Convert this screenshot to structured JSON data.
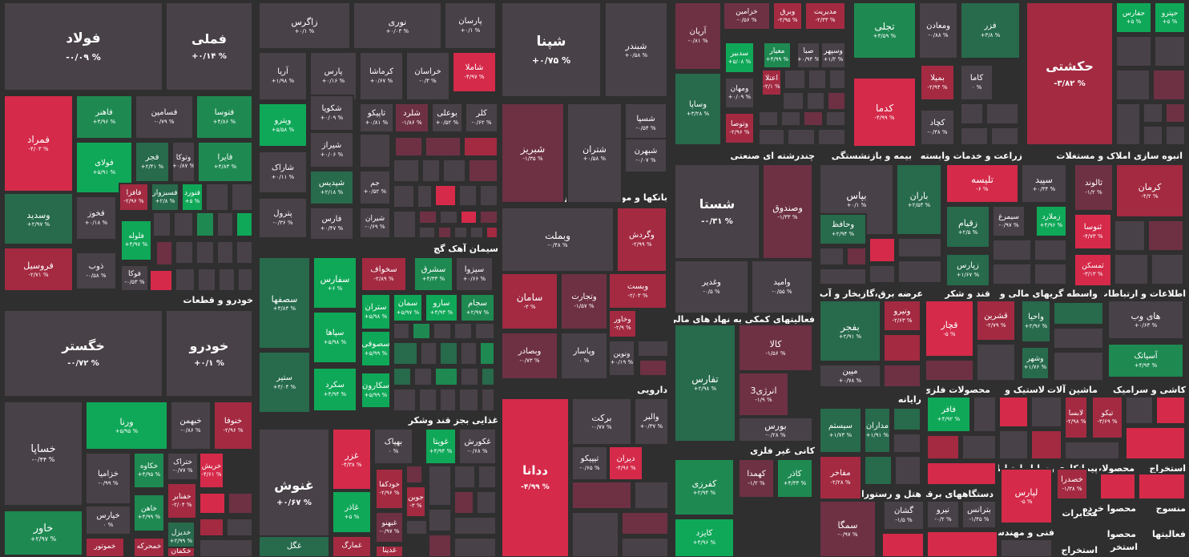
{
  "chart_data": {
    "type": "treemap",
    "colors": {
      "dn3": "#d52a4a",
      "dn2": "#a32a41",
      "dn1": "#6e3144",
      "flat": "#494148",
      "up1": "#276a4c",
      "up2": "#1e8a52",
      "up3": "#0fa858"
    },
    "sectors": [
      {
        "name": "خودرو و قطعات"
      },
      {
        "name": "سیمان آهک گچ"
      },
      {
        "name": "بانکها و موسسات اعتباری"
      },
      {
        "name": "چندرشته ای صنعتی"
      },
      {
        "name": "بیمه و بازنشستگی"
      },
      {
        "name": "زراعت و خدمات وابسته"
      },
      {
        "name": "انبوه سازی املاک و مستغلات"
      },
      {
        "name": "غذایی بجز قند وشکر"
      },
      {
        "name": "دارویی"
      },
      {
        "name": "فعالیتهای کمکی به نهاد های مالی واسط"
      },
      {
        "name": "عرضه برق،گازبخار و آب گرم"
      },
      {
        "name": "قند و شکر"
      },
      {
        "name": "واسطه گریهای مالی و"
      },
      {
        "name": "اطلاعات و ارتباطات"
      },
      {
        "name": "کانی غیر فلزی"
      },
      {
        "name": "رایانه"
      },
      {
        "name": "محصولات فلزی"
      },
      {
        "name": "لاستیک و"
      },
      {
        "name": "ماشین آلات و"
      },
      {
        "name": "کاشی و سرامیک"
      },
      {
        "name": "وسایل ارتباطی"
      },
      {
        "name": "پیمانکاری"
      },
      {
        "name": "محصولات"
      },
      {
        "name": "استخراج"
      },
      {
        "name": "هتل و رستوران"
      },
      {
        "name": "دستگاههای برقی"
      },
      {
        "name": "مخابرات"
      },
      {
        "name": "منسوج"
      },
      {
        "name": "محصوا"
      },
      {
        "name": "خرده"
      },
      {
        "name": "فنی و مهندسی"
      },
      {
        "name": "فعالیتها"
      },
      {
        "name": "محصوا"
      },
      {
        "name": "استخراج"
      },
      {
        "name": "استخر"
      }
    ],
    "tiles": [
      {
        "name": "فولاد",
        "value": "-۰/۰۹ %",
        "c": "flat"
      },
      {
        "name": "فملی",
        "value": "+۰/۱۴ %",
        "c": "flat"
      },
      {
        "name": "زاگرس",
        "value": "+۰/۱ %",
        "c": "flat"
      },
      {
        "name": "نوری",
        "value": "+۰/۰۳ %",
        "c": "flat"
      },
      {
        "name": "پارسان",
        "value": "+۰/۱ %",
        "c": "flat"
      },
      {
        "name": "شپنا",
        "value": "+۰/۷۵ %",
        "c": "flat"
      },
      {
        "name": "شبندر",
        "value": "+۰/۵۸ %",
        "c": "flat"
      },
      {
        "name": "آریان",
        "value": "-۰/۸۱ %",
        "c": "dn1"
      },
      {
        "name": "خزامین",
        "value": "-۰/۵۶ %",
        "c": "dn1"
      },
      {
        "name": "وبرق",
        "value": "-۲/۹۵ %",
        "c": "dn2"
      },
      {
        "name": "مدیریت",
        "value": "-۲/۳۳ %",
        "c": "dn2"
      },
      {
        "name": "تجلی",
        "value": "+۳/۵۹ %",
        "c": "up2"
      },
      {
        "name": "ومعادن",
        "value": "-۰/۸۸ %",
        "c": "flat"
      },
      {
        "name": "فزر",
        "value": "+۳/۸ %",
        "c": "up1"
      },
      {
        "name": "حکشتی",
        "value": "-۳/۸۲ %",
        "c": "dn2"
      },
      {
        "name": "حفارس",
        "value": "+۵ %",
        "c": "up3"
      },
      {
        "name": "حپترو",
        "value": "+۵ %",
        "c": "up3"
      },
      {
        "name": "فمراد",
        "value": "-۴/۰۳ %",
        "c": "dn3"
      },
      {
        "name": "فاهنر",
        "value": "+۴/۹۶ %",
        "c": "up2"
      },
      {
        "name": "فسامین",
        "value": "-۰/۷۹ %",
        "c": "flat"
      },
      {
        "name": "فتوسا",
        "value": "+۴/۸۶ %",
        "c": "up2"
      },
      {
        "name": "فولای",
        "value": "+۵/۹۱ %",
        "c": "up3"
      },
      {
        "name": "فجر",
        "value": "+۲/۴۱ %",
        "c": "up1"
      },
      {
        "name": "وتوکا",
        "value": "+۰/۸۷ %",
        "c": "flat"
      },
      {
        "name": "فایرا",
        "value": "+۴/۸۳ %",
        "c": "up2"
      },
      {
        "name": "فافزا",
        "value": "-۲/۹۶ %",
        "c": "dn2"
      },
      {
        "name": "فسبزوار",
        "value": "+۲/۸ %",
        "c": "up1"
      },
      {
        "name": "فنورد",
        "value": "+۵ %",
        "c": "up3"
      },
      {
        "name": "وسدید",
        "value": "+۲/۹۷ %",
        "c": "up1"
      },
      {
        "name": "فخوز",
        "value": "+۰/۱۸ %",
        "c": "flat"
      },
      {
        "name": "فلوله",
        "value": "+۴/۹۷ %",
        "c": "up3"
      },
      {
        "name": "فروسیل",
        "value": "-۲/۷۱ %",
        "c": "dn2"
      },
      {
        "name": "ذوب",
        "value": "-۰/۵۸ %",
        "c": "flat"
      },
      {
        "name": "فوکا",
        "value": "-۰/۵۳ %",
        "c": "flat"
      },
      {
        "name": "آریا",
        "value": "+۱/۹۸ %",
        "c": "flat"
      },
      {
        "name": "پارس",
        "value": "+۰/۱۶ %",
        "c": "flat"
      },
      {
        "name": "کرماشا",
        "value": "+۰/۶۷ %",
        "c": "flat"
      },
      {
        "name": "خراسان",
        "value": "-۰/۳ %",
        "c": "flat"
      },
      {
        "name": "شاملا",
        "value": "-۴/۹۷ %",
        "c": "dn3"
      },
      {
        "name": "شکویا",
        "value": "+۰/۰۹ %",
        "c": "flat"
      },
      {
        "name": "تاپیکو",
        "value": "+۰/۸۱ %",
        "c": "flat"
      },
      {
        "name": "شلرد",
        "value": "-۱/۸۶ %",
        "c": "dn1"
      },
      {
        "name": "بوعلی",
        "value": "+۰/۵۲ %",
        "c": "flat"
      },
      {
        "name": "کلر",
        "value": "-۰/۶۲ %",
        "c": "flat"
      },
      {
        "name": "ویترو",
        "value": "+۵/۵۸ %",
        "c": "up3"
      },
      {
        "name": "شیراز",
        "value": "+۰/۰۶ %",
        "c": "flat"
      },
      {
        "name": "شاراک",
        "value": "+۰/۱۱ %",
        "c": "flat"
      },
      {
        "name": "شپدیس",
        "value": "+۲/۱۸ %",
        "c": "up1"
      },
      {
        "name": "جم",
        "value": "+۰/۵۲ %",
        "c": "flat"
      },
      {
        "name": "پترول",
        "value": "-۰/۳۶ %",
        "c": "flat"
      },
      {
        "name": "فارس",
        "value": "+۰/۴۷ %",
        "c": "flat"
      },
      {
        "name": "شیران",
        "value": "-۰/۶۹ %",
        "c": "flat"
      },
      {
        "name": "شبریز",
        "value": "-۱/۳۵ %",
        "c": "dn1"
      },
      {
        "name": "شتران",
        "value": "+۰/۵۸ %",
        "c": "flat"
      },
      {
        "name": "شسپا",
        "value": "-۰/۵۴ %",
        "c": "flat"
      },
      {
        "name": "شبهرن",
        "value": "-۰/۰۷ %",
        "c": "flat"
      },
      {
        "name": "سدبیر",
        "value": "+۵/۰۸ %",
        "c": "up3"
      },
      {
        "name": "معیار",
        "value": "+۴/۹۹ %",
        "c": "up2"
      },
      {
        "name": "صبا",
        "value": "+۰/۹۴ %",
        "c": "flat"
      },
      {
        "name": "وسپهر",
        "value": "+۱/۲ %",
        "c": "flat"
      },
      {
        "name": "وساپا",
        "value": "+۳/۲۸ %",
        "c": "up1"
      },
      {
        "name": "ومهان",
        "value": "+۰/۰۹ %",
        "c": "flat"
      },
      {
        "name": "اعتلا",
        "value": "-۲/۱ %",
        "c": "dn2"
      },
      {
        "name": "کدما",
        "value": "-۴/۹۹ %",
        "c": "dn3"
      },
      {
        "name": "بمیلا",
        "value": "-۲/۹۴ %",
        "c": "dn2"
      },
      {
        "name": "کاما",
        "value": "۰ %",
        "c": "flat"
      },
      {
        "name": "وتوصا",
        "value": "-۲/۹۶ %",
        "c": "dn2"
      },
      {
        "name": "کچاد",
        "value": "-۰/۳۸ %",
        "c": "flat"
      },
      {
        "name": "خگستر",
        "value": "-۰/۷۲ %",
        "c": "flat"
      },
      {
        "name": "خودرو",
        "value": "+۰/۱ %",
        "c": "flat"
      },
      {
        "name": "خساپا",
        "value": "-۰/۴۴ %",
        "c": "flat"
      },
      {
        "name": "ورنا",
        "value": "+۵/۹۵ %",
        "c": "up3"
      },
      {
        "name": "خبهمن",
        "value": "-۰/۸۶ %",
        "c": "flat"
      },
      {
        "name": "خنوفا",
        "value": "-۲/۹۶ %",
        "c": "dn2"
      },
      {
        "name": "خزامیا",
        "value": "-۰/۹۹ %",
        "c": "flat"
      },
      {
        "name": "خکاوه",
        "value": "+۴/۹۵ %",
        "c": "up2"
      },
      {
        "name": "ختراک",
        "value": "-۰/۷۷ %",
        "c": "flat"
      },
      {
        "name": "خریش",
        "value": "-۴/۶۱ %",
        "c": "dn3"
      },
      {
        "name": "خفنابر",
        "value": "-۲/۰۴ %",
        "c": "dn2"
      },
      {
        "name": "خاهن",
        "value": "+۴/۹۹ %",
        "c": "up2"
      },
      {
        "name": "خیارس",
        "value": "۰ %",
        "c": "flat"
      },
      {
        "name": "خدیزل",
        "value": "+۲/۹۹ %",
        "c": "up1"
      },
      {
        "name": "خاور",
        "value": "+۲/۹۷ %",
        "c": "up2"
      },
      {
        "name": "خموتور",
        "value": "",
        "c": "dn2"
      },
      {
        "name": "خمحرکه",
        "value": "",
        "c": "dn2"
      },
      {
        "name": "خکمان",
        "value": "",
        "c": "dn2"
      },
      {
        "name": "سفارس",
        "value": "+۶ %",
        "c": "up3"
      },
      {
        "name": "سخواف",
        "value": "-۲/۸۹ %",
        "c": "dn2"
      },
      {
        "name": "سشرق",
        "value": "+۴/۳۳ %",
        "c": "up2"
      },
      {
        "name": "سیزوا",
        "value": "+۰/۶۶ %",
        "c": "flat"
      },
      {
        "name": "سصفها",
        "value": "+۳/۸۴ %",
        "c": "up1"
      },
      {
        "name": "ستران",
        "value": "+۵/۹۸ %",
        "c": "up3"
      },
      {
        "name": "سمان",
        "value": "+۵/۹۷ %",
        "c": "up3"
      },
      {
        "name": "سارو",
        "value": "+۴/۹۴ %",
        "c": "up3"
      },
      {
        "name": "سجام",
        "value": "+۲/۹۷ %",
        "c": "up2"
      },
      {
        "name": "سپاها",
        "value": "+۵/۹۸ %",
        "c": "up3"
      },
      {
        "name": "سصوفی",
        "value": "+۵/۹۹ %",
        "c": "up3"
      },
      {
        "name": "ستیر",
        "value": "+۳/۰۴ %",
        "c": "up1"
      },
      {
        "name": "سکرد",
        "value": "+۴/۹۴ %",
        "c": "up3"
      },
      {
        "name": "سکارون",
        "value": "+۵/۹۹ %",
        "c": "up3"
      },
      {
        "name": "وبملت",
        "value": "-۰/۴۸ %",
        "c": "flat"
      },
      {
        "name": "وگردش",
        "value": "-۲/۹۹ %",
        "c": "dn2"
      },
      {
        "name": "سامان",
        "value": "-۳ %",
        "c": "dn2"
      },
      {
        "name": "وتجارت",
        "value": "-۱/۵۷ %",
        "c": "dn1"
      },
      {
        "name": "وبست",
        "value": "-۲/۰۳ %",
        "c": "dn2"
      },
      {
        "name": "وخاور",
        "value": "-۲/۹ %",
        "c": "dn2"
      },
      {
        "name": "وبصادر",
        "value": "-۰/۷۳ %",
        "c": "dn1"
      },
      {
        "name": "وپاسار",
        "value": "۰ %",
        "c": "flat"
      },
      {
        "name": "ونوین",
        "value": "+۰/۱۹ %",
        "c": "flat"
      },
      {
        "name": "شستا",
        "value": "-۰/۳۱ %",
        "c": "flat"
      },
      {
        "name": "وصندوق",
        "value": "-۱/۳۳ %",
        "c": "dn1"
      },
      {
        "name": "وغدیر",
        "value": "-۰/۵ %",
        "c": "flat"
      },
      {
        "name": "وامید",
        "value": "-۰/۵۵ %",
        "c": "flat"
      },
      {
        "name": "بپاس",
        "value": "+۰/۱ %",
        "c": "flat"
      },
      {
        "name": "باران",
        "value": "+۲/۵۳ %",
        "c": "up1"
      },
      {
        "name": "وحافظ",
        "value": "+۲/۹۴ %",
        "c": "up1"
      },
      {
        "name": "تلیسه",
        "value": "-۶ %",
        "c": "dn3"
      },
      {
        "name": "سپید",
        "value": "+۰/۳۴ %",
        "c": "flat"
      },
      {
        "name": "زقیام",
        "value": "+۲/۵ %",
        "c": "up1"
      },
      {
        "name": "سیمرغ",
        "value": "-۰/۹۷ %",
        "c": "flat"
      },
      {
        "name": "زملارد",
        "value": "+۴/۹۶ %",
        "c": "up3"
      },
      {
        "name": "زپارس",
        "value": "+۱/۶۷ %",
        "c": "up1"
      },
      {
        "name": "ثالوند",
        "value": "-۱/۲ %",
        "c": "dn1"
      },
      {
        "name": "کرمان",
        "value": "-۴/۲ %",
        "c": "dn2"
      },
      {
        "name": "ثنوسا",
        "value": "-۴/۷۳ %",
        "c": "dn3"
      },
      {
        "name": "ثمسکن",
        "value": "-۳/۱۳ %",
        "c": "dn3"
      },
      {
        "name": "غنوش",
        "value": "+۰/۶۷ %",
        "c": "flat"
      },
      {
        "name": "بهپاک",
        "value": "۰ %",
        "c": "flat"
      },
      {
        "name": "غویتا",
        "value": "+۴/۹۴ %",
        "c": "up3"
      },
      {
        "name": "غکورش",
        "value": "-۰/۶۸ %",
        "c": "flat"
      },
      {
        "name": "غزر",
        "value": "-۴/۳۸ %",
        "c": "dn3"
      },
      {
        "name": "خودکفا",
        "value": "-۲/۹۶ %",
        "c": "dn2"
      },
      {
        "name": "جوین",
        "value": "-۳ %",
        "c": "dn2"
      },
      {
        "name": "غاذر",
        "value": "+۵ %",
        "c": "up3"
      },
      {
        "name": "غبهنو",
        "value": "-۰/۹۷ %",
        "c": "dn1"
      },
      {
        "name": "غگل",
        "value": "",
        "c": "up1"
      },
      {
        "name": "غمارگ",
        "value": "",
        "c": "dn2"
      },
      {
        "name": "غدینا",
        "value": "",
        "c": "dn2"
      },
      {
        "name": "ددانا",
        "value": "-۴/۹۹ %",
        "c": "dn3"
      },
      {
        "name": "برکت",
        "value": "-۰/۷۷ %",
        "c": "flat"
      },
      {
        "name": "والبر",
        "value": "+۰/۳۷ %",
        "c": "flat"
      },
      {
        "name": "تیپیکو",
        "value": "-۰/۶۵ %",
        "c": "flat"
      },
      {
        "name": "دیران",
        "value": "-۴/۹۶ %",
        "c": "dn3"
      },
      {
        "name": "تفارس",
        "value": "+۲/۹۸ %",
        "c": "up1"
      },
      {
        "name": "کالا",
        "value": "-۱/۵۶ %",
        "c": "dn1"
      },
      {
        "name": "انرژی3",
        "value": "-۱/۹ %",
        "c": "dn1"
      },
      {
        "name": "بورس",
        "value": "-۰/۲۸ %",
        "c": "flat"
      },
      {
        "name": "بفجر",
        "value": "+۲/۹۱ %",
        "c": "up1"
      },
      {
        "name": "ونیرو",
        "value": "-۲/۶۳ %",
        "c": "dn2"
      },
      {
        "name": "مپین",
        "value": "+۰/۷۸ %",
        "c": "flat"
      },
      {
        "name": "قچار",
        "value": "-۵ %",
        "c": "dn3"
      },
      {
        "name": "قشرین",
        "value": "-۲/۷۹ %",
        "c": "dn2"
      },
      {
        "name": "واحیا",
        "value": "+۲/۹۶ %",
        "c": "up1"
      },
      {
        "name": "وشهر",
        "value": "+۱/۷۶ %",
        "c": "up1"
      },
      {
        "name": "های وب",
        "value": "+۰/۶۳ %",
        "c": "flat"
      },
      {
        "name": "آسیاتک",
        "value": "+۴/۹۴ %",
        "c": "up2"
      },
      {
        "name": "کفرزی",
        "value": "+۲/۹۴ %",
        "c": "up2"
      },
      {
        "name": "کهمدا",
        "value": "-۱/۲ %",
        "c": "dn1"
      },
      {
        "name": "کاذر",
        "value": "+۴/۳۳ %",
        "c": "up2"
      },
      {
        "name": "کایزد",
        "value": "+۴/۹۶ %",
        "c": "up3"
      },
      {
        "name": "سیستم",
        "value": "+۱/۷۳ %",
        "c": "up1"
      },
      {
        "name": "مداران",
        "value": "+۱/۹۱ %",
        "c": "up1"
      },
      {
        "name": "مفاخر",
        "value": "-۲/۲۸ %",
        "c": "dn2"
      },
      {
        "name": "فافر",
        "value": "+۴/۹۲ %",
        "c": "up3"
      },
      {
        "name": "لابسا",
        "value": "-۲/۹۸ %",
        "c": "dn2"
      },
      {
        "name": "تیکو",
        "value": "-۳/۶۹ %",
        "c": "dn2"
      },
      {
        "name": "سمگا",
        "value": "-۰/۹۷ %",
        "c": "dn1"
      },
      {
        "name": "گشان",
        "value": "-۱/۵ %",
        "c": "flat"
      },
      {
        "name": "لپارس",
        "value": "-۵ %",
        "c": "dn3"
      },
      {
        "name": "خصدرا",
        "value": "-۱/۳۸ %",
        "c": "dn2"
      },
      {
        "name": "نیرو",
        "value": "-۰/۲ %",
        "c": "flat"
      },
      {
        "name": "بترانس",
        "value": "-۱/۴۵ %",
        "c": "flat"
      }
    ]
  }
}
